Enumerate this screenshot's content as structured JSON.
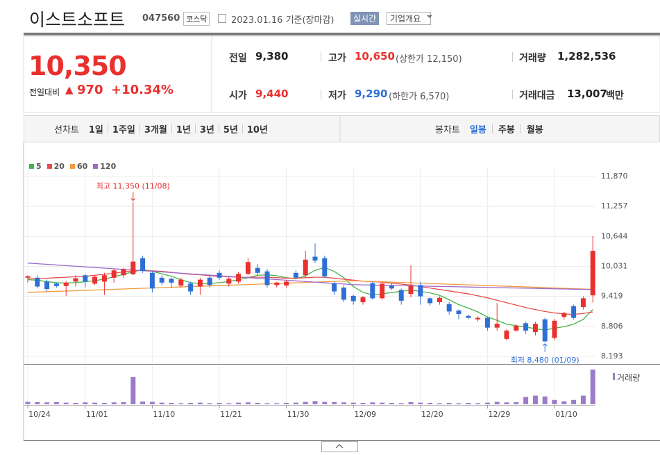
{
  "header": {
    "title": "이스트소프트",
    "code": "047560",
    "market": "코스닥",
    "date": "2023.01.16 기준(장마감)",
    "realtime_button": "실시간",
    "overview_button": "기업개요"
  },
  "quote": {
    "price": "10,350",
    "change_label": "전일대비",
    "change": "970",
    "change_rate": "+10.34%",
    "items": [
      {
        "label": "전일",
        "value": "9,380"
      },
      {
        "label": "고가",
        "value": "10,650",
        "note": "(상한가 12,150)"
      },
      {
        "label": "거래량",
        "value": "1,282,536"
      },
      {
        "label": "시가",
        "value": "9,440"
      },
      {
        "label": "저가",
        "value": "9,290",
        "note": "(하한가 6,570)"
      },
      {
        "label": "거래대금",
        "value": "13,007",
        "unit": "백만"
      }
    ]
  },
  "tabs": {
    "line_label": "선차트",
    "line_periods": [
      "1일",
      "1주일",
      "3개월",
      "1년",
      "3년",
      "5년",
      "10년"
    ],
    "candle_label": "봉차트",
    "candle_periods": [
      "일봉",
      "주봉",
      "월봉"
    ]
  },
  "chart_data": {
    "type": "candlestick",
    "categories": [
      "10/24",
      null,
      null,
      null,
      null,
      null,
      "11/01",
      null,
      null,
      null,
      null,
      null,
      null,
      "11/10",
      null,
      null,
      null,
      null,
      null,
      null,
      "11/21",
      null,
      null,
      null,
      null,
      null,
      null,
      "11/30",
      null,
      null,
      null,
      null,
      null,
      null,
      "12/09",
      null,
      null,
      null,
      null,
      null,
      null,
      "12/20",
      null,
      null,
      null,
      null,
      null,
      null,
      "12/29",
      null,
      null,
      null,
      null,
      null,
      null,
      "01/10",
      null,
      null,
      null,
      null
    ],
    "open": [
      9800,
      9800,
      9720,
      9680,
      9630,
      9720,
      9850,
      9680,
      9720,
      9800,
      9850,
      9870,
      10200,
      9900,
      9800,
      9780,
      9640,
      9680,
      9620,
      9800,
      9900,
      9680,
      9720,
      9880,
      10000,
      9930,
      9650,
      9640,
      9900,
      9850,
      10230,
      10200,
      9680,
      9600,
      9430,
      9300,
      9690,
      9380,
      9640,
      9550,
      9470,
      9650,
      9380,
      9300,
      9260,
      9130,
      9020,
      8950,
      8980,
      8780,
      8550,
      8720,
      8870,
      8690,
      8950,
      8570,
      9000,
      9220,
      9200,
      9440
    ],
    "high": [
      9850,
      9850,
      9760,
      9700,
      9730,
      9850,
      9880,
      9850,
      9900,
      9980,
      10000,
      11350,
      10250,
      9930,
      9850,
      9800,
      9800,
      9720,
      9800,
      9850,
      9950,
      9820,
      9920,
      10200,
      10080,
      9980,
      9720,
      9750,
      9950,
      10350,
      10500,
      10250,
      9720,
      9650,
      9450,
      9430,
      9720,
      9720,
      9680,
      9580,
      10050,
      9720,
      9400,
      9420,
      9300,
      9150,
      9050,
      9020,
      9000,
      9280,
      8750,
      8850,
      8900,
      8900,
      8980,
      8960,
      9100,
      9250,
      9420,
      10650
    ],
    "low": [
      9700,
      9580,
      9520,
      9600,
      9430,
      9620,
      9600,
      9650,
      9450,
      9700,
      9800,
      9850,
      9900,
      9500,
      9650,
      9600,
      9600,
      9450,
      9450,
      9600,
      9750,
      9620,
      9680,
      9850,
      9850,
      9600,
      9600,
      9600,
      9780,
      9800,
      10100,
      9800,
      9450,
      9300,
      9250,
      9250,
      9350,
      9350,
      9550,
      9250,
      9400,
      9250,
      9230,
      9250,
      9050,
      8950,
      8950,
      8900,
      8720,
      8720,
      8520,
      8700,
      8650,
      8620,
      8480,
      8520,
      8950,
      8950,
      9150,
      9290
    ],
    "close": [
      9830,
      9620,
      9570,
      9630,
      9700,
      9790,
      9720,
      9820,
      9850,
      9950,
      9980,
      10130,
      9940,
      9580,
      9700,
      9700,
      9760,
      9520,
      9760,
      9650,
      9800,
      9780,
      9880,
      10120,
      9900,
      9650,
      9700,
      9720,
      9800,
      10170,
      10150,
      9830,
      9520,
      9350,
      9320,
      9400,
      9380,
      9680,
      9580,
      9330,
      9630,
      9420,
      9280,
      9390,
      9110,
      9060,
      8980,
      8980,
      8780,
      8860,
      8720,
      8820,
      8720,
      8860,
      8500,
      8920,
      9080,
      8980,
      9380,
      10350
    ],
    "up_color": "#e8312f",
    "down_color": "#2e6fd6",
    "ylim": [
      8193,
      11870
    ],
    "yticks": [
      {
        "value": 11870,
        "label": "11,870"
      },
      {
        "value": 11257,
        "label": "11,257"
      },
      {
        "value": 10644,
        "label": "10,644"
      },
      {
        "value": 10031,
        "label": "10,031"
      },
      {
        "value": 9419,
        "label": "9,419"
      },
      {
        "value": 8806,
        "label": "8,806"
      },
      {
        "value": 8193,
        "label": "8,193"
      }
    ],
    "grid": true,
    "moving_averages": [
      {
        "name": "5",
        "color": "#45b445",
        "values": [
          9760,
          9750,
          9720,
          9700,
          9690,
          9700,
          9720,
          9740,
          9770,
          9820,
          9870,
          9920,
          9970,
          9930,
          9880,
          9830,
          9760,
          9700,
          9680,
          9680,
          9700,
          9720,
          9760,
          9800,
          9850,
          9860,
          9840,
          9800,
          9780,
          9840,
          9950,
          10010,
          9930,
          9800,
          9620,
          9500,
          9450,
          9470,
          9500,
          9520,
          9550,
          9520,
          9490,
          9440,
          9350,
          9250,
          9180,
          9100,
          9000,
          8930,
          8850,
          8820,
          8790,
          8760,
          8730,
          8770,
          8800,
          8850,
          8950,
          9150
        ]
      },
      {
        "name": "20",
        "color": "#e84b4b",
        "values": [
          9780,
          9780,
          9790,
          9800,
          9810,
          9820,
          9830,
          9850,
          9870,
          9890,
          9920,
          9940,
          9950,
          9940,
          9930,
          9910,
          9890,
          9870,
          9860,
          9840,
          9830,
          9820,
          9810,
          9810,
          9810,
          9810,
          9800,
          9790,
          9790,
          9800,
          9810,
          9810,
          9790,
          9770,
          9750,
          9730,
          9720,
          9710,
          9690,
          9670,
          9650,
          9620,
          9590,
          9560,
          9530,
          9500,
          9470,
          9430,
          9390,
          9340,
          9290,
          9240,
          9190,
          9150,
          9110,
          9080,
          9060,
          9050,
          9070,
          9100
        ]
      },
      {
        "name": "60",
        "color": "#f29a3d",
        "values": [
          9500,
          9507,
          9514,
          9521,
          9528,
          9535,
          9542,
          9549,
          9556,
          9563,
          9570,
          9577,
          9584,
          9591,
          9598,
          9605,
          9612,
          9619,
          9626,
          9633,
          9640,
          9647,
          9654,
          9661,
          9668,
          9675,
          9682,
          9689,
          9696,
          9703,
          9710,
          9717,
          9724,
          9731,
          9738,
          9731,
          9724,
          9717,
          9710,
          9703,
          9696,
          9689,
          9682,
          9675,
          9668,
          9661,
          9654,
          9647,
          9640,
          9633,
          9626,
          9619,
          9612,
          9605,
          9598,
          9591,
          9584,
          9577,
          9570,
          9563
        ]
      },
      {
        "name": "120",
        "color": "#9c6bcc",
        "values": [
          10100,
          10087,
          10074,
          10061,
          10048,
          10035,
          10022,
          10009,
          9996,
          9983,
          9970,
          9957,
          9944,
          9931,
          9918,
          9905,
          9892,
          9879,
          9866,
          9853,
          9840,
          9827,
          9814,
          9801,
          9788,
          9775,
          9762,
          9749,
          9736,
          9723,
          9710,
          9697,
          9684,
          9671,
          9658,
          9654,
          9650,
          9646,
          9642,
          9638,
          9634,
          9630,
          9626,
          9622,
          9618,
          9614,
          9610,
          9606,
          9602,
          9598,
          9594,
          9590,
          9586,
          9582,
          9578,
          9574,
          9570,
          9566,
          9562,
          9558
        ]
      }
    ],
    "volume": {
      "name": "거래량",
      "color": "#9c7bc9",
      "values": [
        90000,
        80000,
        70000,
        80000,
        60000,
        50000,
        70000,
        60000,
        50000,
        70000,
        80000,
        1000000,
        100000,
        90000,
        60000,
        50000,
        40000,
        50000,
        60000,
        40000,
        50000,
        40000,
        60000,
        70000,
        50000,
        40000,
        40000,
        50000,
        60000,
        90000,
        120000,
        90000,
        80000,
        70000,
        60000,
        50000,
        70000,
        60000,
        50000,
        40000,
        80000,
        60000,
        50000,
        40000,
        50000,
        40000,
        50000,
        40000,
        60000,
        90000,
        70000,
        80000,
        270000,
        320000,
        290000,
        160000,
        110000,
        160000,
        320000,
        1282536
      ]
    },
    "annotations": {
      "high": "최고 11,350 (11/08)",
      "low": "최저 8,480 (01/09)"
    }
  }
}
